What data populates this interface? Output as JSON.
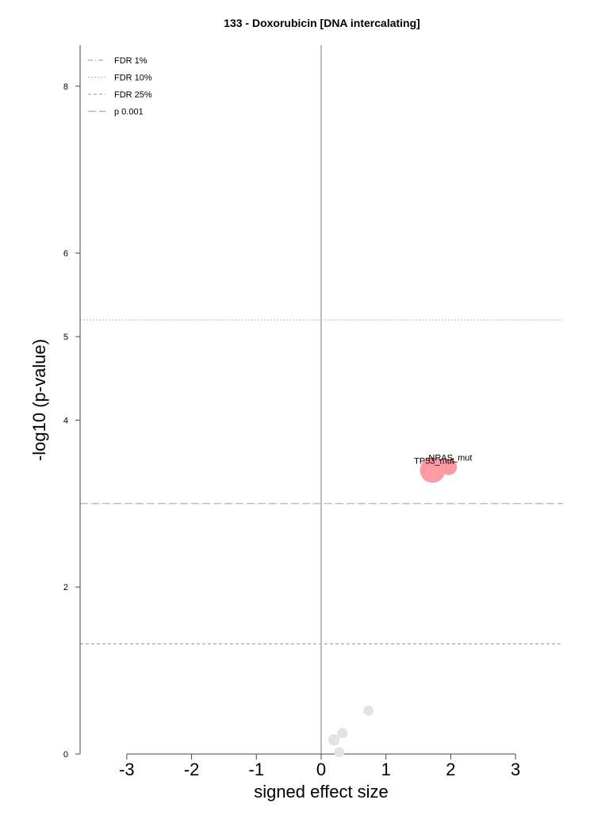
{
  "chart_data": {
    "type": "scatter",
    "title": "133 - Doxorubicin [DNA intercalating]",
    "xlabel": "signed effect size",
    "ylabel": "-log10 (p-value)",
    "xlim": [
      -3.75,
      3.75
    ],
    "ylim": [
      0,
      8.5
    ],
    "x_ticks": [
      -3,
      -2,
      -1,
      0,
      1,
      2,
      3
    ],
    "x_tick_labels": [
      "-3",
      "-2",
      "-1",
      "0",
      "1",
      "2",
      "3"
    ],
    "y_ticks": [
      0,
      2,
      4,
      5,
      6,
      8
    ],
    "y_tick_labels": [
      "0",
      "2",
      "4",
      "5",
      "6",
      "8"
    ],
    "grid": false,
    "legend_position": "top-left",
    "threshold_lines": [
      {
        "name": "FDR 1%",
        "dash": "dash-dot",
        "y": null,
        "color": "#a8a8a8"
      },
      {
        "name": "FDR 10%",
        "dash": "dotted",
        "y": 5.2,
        "color": "#a8a8a8"
      },
      {
        "name": "FDR 25%",
        "dash": "dashed",
        "y": 1.32,
        "color": "#a8a8a8"
      },
      {
        "name": "p 0.001",
        "dash": "long-dashed",
        "y": 3.0,
        "color": "#a8a8a8"
      }
    ],
    "series": [
      {
        "significant": true,
        "color": "#ff9aa2",
        "points": [
          {
            "x": 1.72,
            "y": 3.4,
            "size": 3,
            "label": "TP53_mut"
          },
          {
            "x": 1.97,
            "y": 3.44,
            "size": 1.6,
            "label": "NRAS_mut"
          }
        ]
      },
      {
        "significant": false,
        "color": "#e3e3e3",
        "points": [
          {
            "x": 0.73,
            "y": 0.52,
            "size": 0.6,
            "label": ""
          },
          {
            "x": 0.33,
            "y": 0.25,
            "size": 0.6,
            "label": ""
          },
          {
            "x": 0.2,
            "y": 0.17,
            "size": 0.8,
            "label": ""
          },
          {
            "x": 0.28,
            "y": 0.02,
            "size": 0.6,
            "label": ""
          }
        ]
      }
    ]
  }
}
